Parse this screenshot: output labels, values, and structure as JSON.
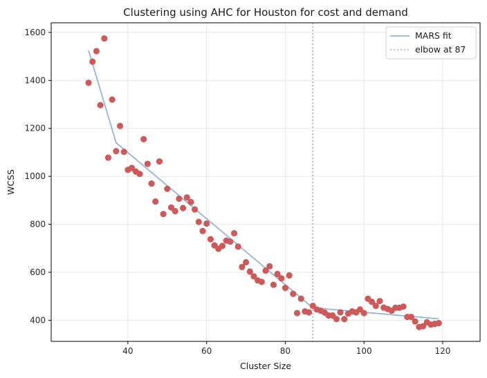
{
  "chart_data": {
    "type": "scatter",
    "title": "Clustering using AHC for Houston for cost and demand",
    "xlabel": "Cluster Size",
    "ylabel": "WCSS",
    "xlim": [
      20.5,
      129.5
    ],
    "ylim": [
      312,
      1640
    ],
    "x_ticks": [
      40,
      60,
      80,
      100,
      120
    ],
    "y_ticks": [
      400,
      600,
      800,
      1000,
      1200,
      1400,
      1600
    ],
    "grid": true,
    "legend_position": "top-right",
    "colors": {
      "points": "#cd5a5a",
      "fit": "#93b4d4",
      "elbow": "#aaaaaa"
    },
    "points": {
      "x": [
        30,
        31,
        32,
        33,
        34,
        35,
        36,
        37,
        38,
        39,
        40,
        41,
        42,
        43,
        44,
        45,
        46,
        47,
        48,
        49,
        50,
        51,
        52,
        53,
        54,
        55,
        56,
        57,
        58,
        59,
        60,
        61,
        62,
        63,
        64,
        65,
        66,
        67,
        68,
        69,
        70,
        71,
        72,
        73,
        74,
        75,
        76,
        77,
        78,
        79,
        80,
        81,
        82,
        83,
        84,
        85,
        86,
        87,
        88,
        89,
        90,
        91,
        92,
        93,
        94,
        95,
        96,
        97,
        98,
        99,
        100,
        101,
        102,
        103,
        104,
        105,
        106,
        107,
        108,
        109,
        110,
        111,
        112,
        113,
        114,
        115,
        116,
        117,
        118,
        119
      ],
      "y": [
        1390,
        1478,
        1522,
        1297,
        1575,
        1078,
        1320,
        1105,
        1210,
        1102,
        1027,
        1035,
        1020,
        1010,
        1155,
        1052,
        970,
        895,
        1062,
        843,
        948,
        870,
        855,
        907,
        868,
        912,
        893,
        862,
        810,
        772,
        803,
        738,
        712,
        698,
        710,
        732,
        728,
        763,
        707,
        622,
        642,
        603,
        583,
        566,
        560,
        607,
        625,
        548,
        593,
        575,
        535,
        587,
        510,
        430,
        490,
        437,
        433,
        460,
        445,
        440,
        432,
        420,
        420,
        405,
        433,
        405,
        428,
        437,
        433,
        445,
        430,
        490,
        477,
        460,
        480,
        453,
        447,
        440,
        452,
        452,
        457,
        414,
        414,
        395,
        372,
        375,
        392,
        382,
        385,
        388
      ]
    },
    "series": [
      {
        "name": "MARS fit",
        "x": [
          30,
          37,
          87,
          119
        ],
        "y": [
          1525,
          1140,
          452,
          406
        ]
      },
      {
        "name": "elbow at 87",
        "x": [
          87
        ]
      }
    ]
  }
}
